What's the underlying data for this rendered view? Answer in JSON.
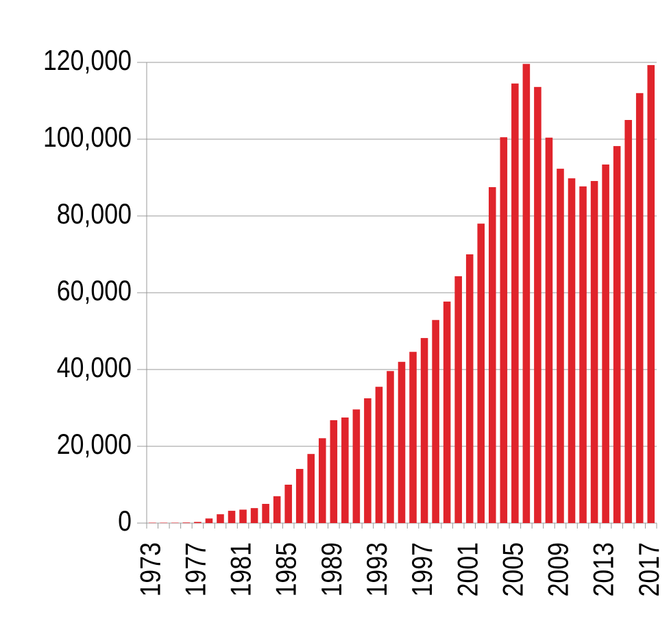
{
  "chart_data": {
    "type": "bar",
    "categories": [
      "1973",
      null,
      null,
      null,
      "1977",
      null,
      null,
      null,
      "1981",
      null,
      null,
      null,
      "1985",
      null,
      null,
      null,
      "1989",
      null,
      null,
      null,
      "1993",
      null,
      null,
      null,
      "1997",
      null,
      null,
      null,
      "2001",
      null,
      null,
      null,
      "2005",
      null,
      null,
      null,
      "2009",
      null,
      null,
      null,
      "2013",
      null,
      null,
      null,
      "2017"
    ],
    "values": [
      100,
      100,
      100,
      150,
      300,
      1200,
      2300,
      3200,
      3500,
      3900,
      5000,
      7000,
      10000,
      14100,
      18000,
      22100,
      26800,
      27500,
      29600,
      32500,
      35500,
      39600,
      42000,
      44600,
      48200,
      52900,
      57700,
      64300,
      70000,
      78000,
      87500,
      100500,
      114500,
      119600,
      113600,
      100400,
      92300,
      89800,
      87700,
      89100,
      93400,
      98200,
      105000,
      112000,
      119300
    ],
    "color": "#e0242b",
    "ylim": [
      0,
      120000
    ],
    "yticks": [
      0,
      {
        "value": 20000,
        "label": "20,000"
      },
      {
        "value": 40000,
        "label": "40,000"
      },
      {
        "value": 60000,
        "label": "60,000"
      },
      {
        "value": 80000,
        "label": "80,000"
      },
      {
        "value": 100000,
        "label": "100,000"
      },
      {
        "value": 120000,
        "label": "120,000"
      }
    ],
    "grid": true
  }
}
